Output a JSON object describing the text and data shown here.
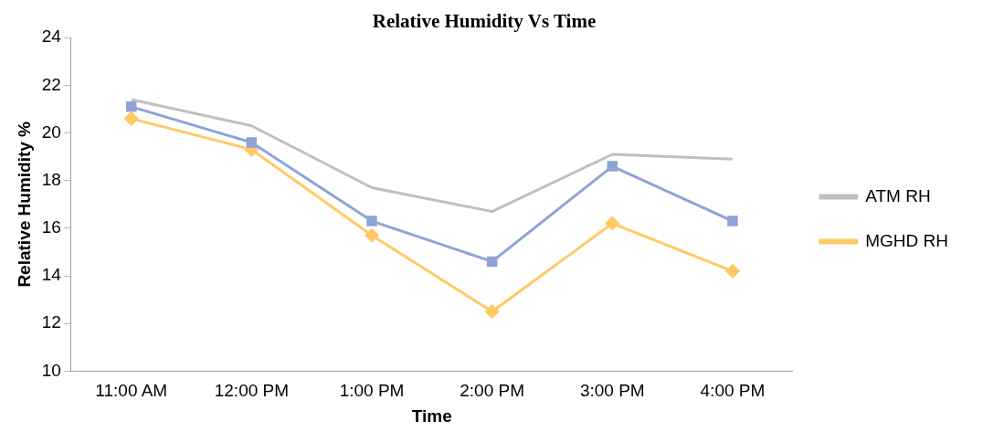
{
  "chart_data": {
    "type": "line",
    "title": "Relative Humidity Vs Time",
    "xlabel": "Time",
    "ylabel": "Relative Humidity %",
    "categories": [
      "11:00 AM",
      "12:00 PM",
      "1:00 PM",
      "2:00 PM",
      "3:00 PM",
      "4:00 PM"
    ],
    "series": [
      {
        "name": "ATM RH",
        "color": "#bfbfbf",
        "marker": "none",
        "values": [
          21.4,
          20.3,
          17.7,
          16.7,
          19.1,
          18.9
        ]
      },
      {
        "color": "#8fa3d6",
        "marker": "square",
        "values": [
          21.1,
          19.6,
          16.3,
          14.6,
          18.6,
          16.3
        ]
      },
      {
        "name": "MGHD RH",
        "color": "#ffc966",
        "marker": "diamond",
        "values": [
          20.6,
          19.3,
          15.7,
          12.5,
          16.2,
          14.2
        ]
      }
    ],
    "ylim": [
      10,
      24
    ],
    "yticks": [
      10,
      12,
      14,
      16,
      18,
      20,
      22,
      24
    ],
    "grid": false,
    "legend": "right"
  }
}
